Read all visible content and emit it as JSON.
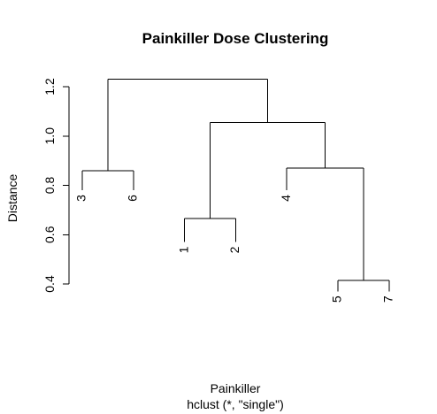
{
  "chart_data": {
    "type": "dendrogram",
    "title": "Painkiller Dose Clustering",
    "xlabel": "Painkiller",
    "sublabel": "hclust (*, \"single\")",
    "ylabel": "Distance",
    "ylim": [
      0.4,
      1.25
    ],
    "yticks": [
      0.4,
      0.6,
      0.8,
      1.0,
      1.2
    ],
    "ytick_labels": [
      "0.4",
      "0.6",
      "0.8",
      "1.0",
      "1.2"
    ],
    "leaf_order": [
      "3",
      "6",
      "1",
      "2",
      "4",
      "5",
      "7"
    ],
    "leaf_ends": [
      0.78,
      0.78,
      0.57,
      0.57,
      0.78,
      0.37,
      0.37
    ],
    "merges": [
      {
        "left": "leaf:5",
        "right": "leaf:7",
        "height": 0.415
      },
      {
        "left": "leaf:1",
        "right": "leaf:2",
        "height": 0.665
      },
      {
        "left": "leaf:3",
        "right": "leaf:6",
        "height": 0.86
      },
      {
        "left": "leaf:4",
        "right": "m:0",
        "height": 0.87
      },
      {
        "left": "m:1",
        "right": "m:3",
        "height": 1.055
      },
      {
        "left": "m:2",
        "right": "m:4",
        "height": 1.23
      }
    ]
  }
}
